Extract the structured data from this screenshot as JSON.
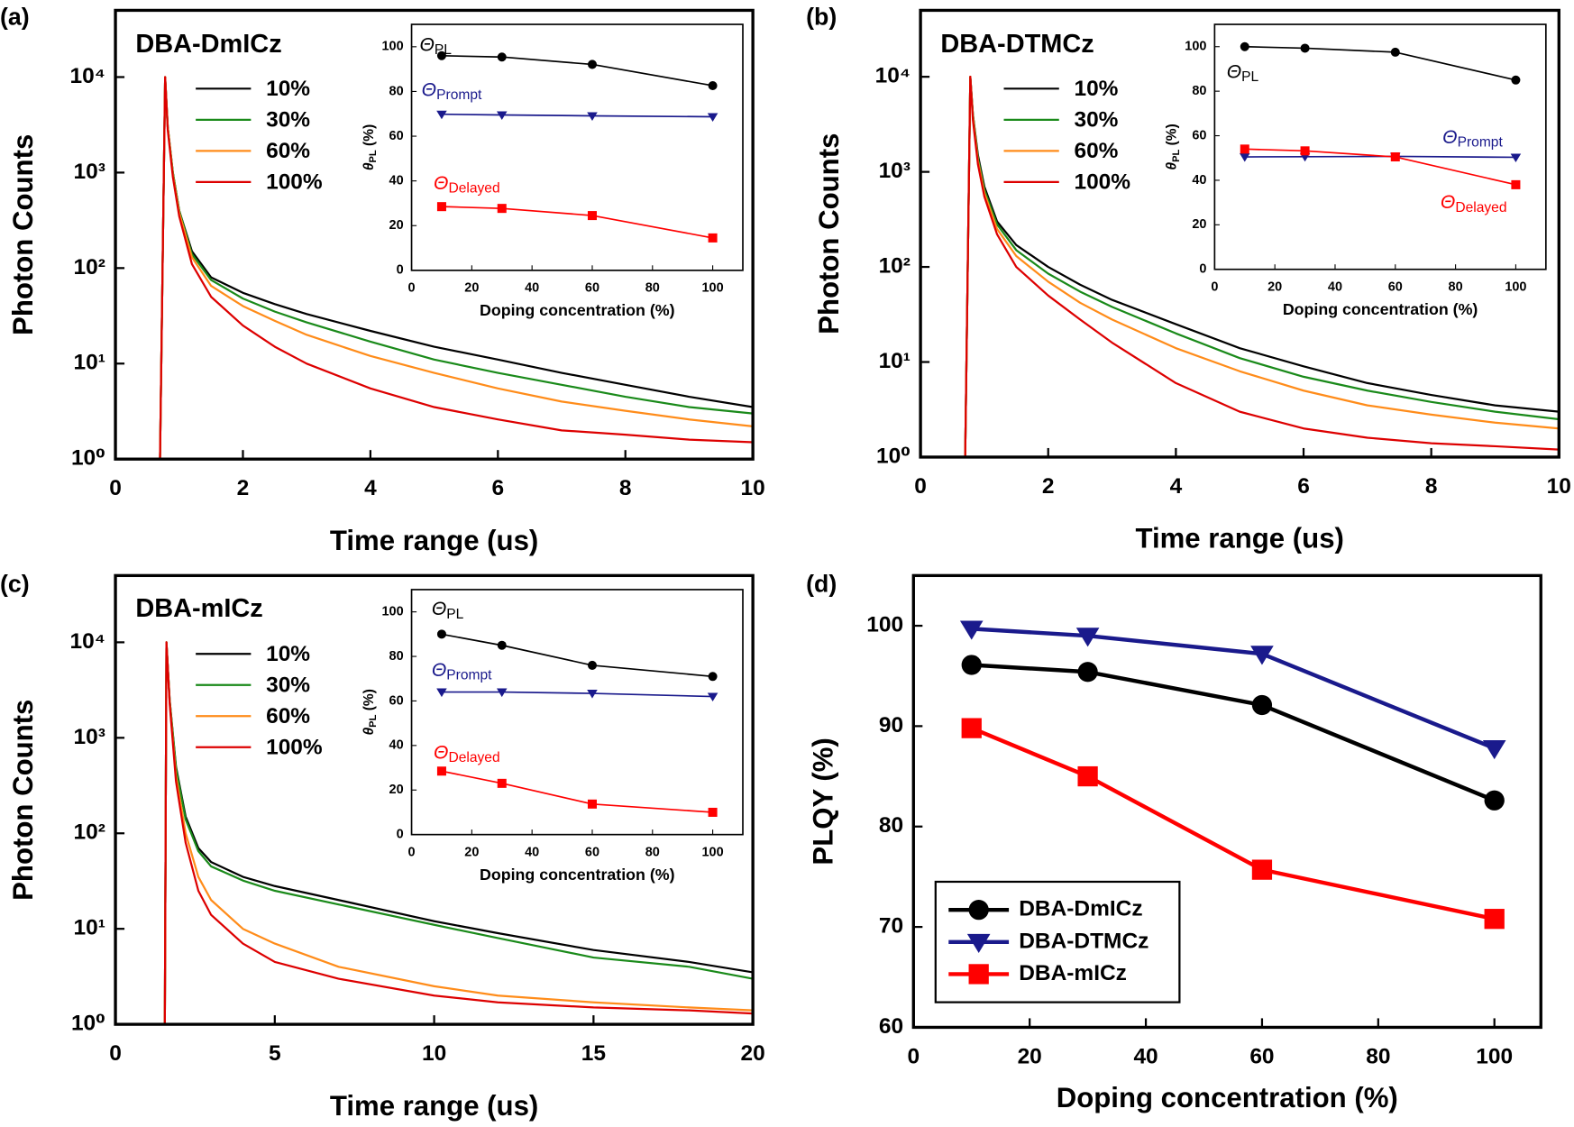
{
  "chart_data": [
    {
      "type": "line",
      "panel_label": "(a)",
      "title": "DBA-DmICz",
      "xlabel": "Time range (us)",
      "ylabel": "Photon Counts",
      "log_y": true,
      "x": [
        0,
        0.7,
        0.78,
        0.82,
        0.9,
        1.0,
        1.2,
        1.5,
        2,
        2.5,
        3,
        4,
        5,
        6,
        7,
        8,
        9,
        10
      ],
      "series": [
        {
          "name": "10%",
          "color": "#000000",
          "values": [
            1,
            1,
            10000,
            3000,
            1000,
            400,
            150,
            80,
            55,
            42,
            33,
            22,
            15,
            11,
            8,
            6,
            4.5,
            3.5
          ]
        },
        {
          "name": "30%",
          "color": "#1a8a1a",
          "values": [
            1,
            1,
            10000,
            3000,
            1000,
            400,
            140,
            75,
            48,
            35,
            27,
            17,
            11,
            8,
            6,
            4.5,
            3.5,
            3
          ]
        },
        {
          "name": "60%",
          "color": "#ff8c1a",
          "values": [
            1,
            1,
            10000,
            3000,
            950,
            380,
            130,
            65,
            40,
            28,
            20,
            12,
            8,
            5.5,
            4,
            3.2,
            2.6,
            2.2
          ]
        },
        {
          "name": "100%",
          "color": "#dd0000",
          "values": [
            1,
            1,
            10000,
            2800,
            900,
            350,
            110,
            50,
            25,
            15,
            10,
            5.5,
            3.5,
            2.6,
            2,
            1.8,
            1.6,
            1.5
          ]
        }
      ],
      "xlim": [
        0,
        10
      ],
      "ylim": [
        1,
        50000
      ],
      "xticks": [
        0,
        2,
        4,
        6,
        8,
        10
      ],
      "yticks": [
        {
          "value": 1,
          "label": "10⁰"
        },
        {
          "value": 10,
          "label": "10¹"
        },
        {
          "value": 100,
          "label": "10²"
        },
        {
          "value": 1000,
          "label": "10³"
        },
        {
          "value": 10000,
          "label": "10⁴"
        }
      ]
    },
    {
      "type": "line",
      "xlabel": "Doping concentration (%)",
      "ylabel": "θ",
      "ylabel_sub": "PL",
      "ylabel_suffix": " (%)",
      "x": [
        10,
        30,
        60,
        100
      ],
      "series": [
        {
          "name": "Θ",
          "name_sub": "PL",
          "color": "#000000",
          "marker": "circle",
          "values": [
            96,
            95.4,
            92.1,
            82.6
          ]
        },
        {
          "name": "Θ",
          "name_sub": "Prompt",
          "color": "#1a1a8c",
          "marker": "triangle",
          "values": [
            69.8,
            69.5,
            69.1,
            68.7
          ]
        },
        {
          "name": "Θ",
          "name_sub": "Delayed",
          "color": "#ff0000",
          "marker": "square",
          "values": [
            28.5,
            27.7,
            24.5,
            14.5
          ]
        }
      ],
      "xlim": [
        0,
        110
      ],
      "ylim": [
        0,
        110
      ],
      "xticks": [
        0,
        20,
        40,
        60,
        80,
        100
      ],
      "yticks": [
        0,
        20,
        40,
        60,
        80,
        100
      ]
    },
    {
      "type": "line",
      "panel_label": "(b)",
      "title": "DBA-DTMCz",
      "xlabel": "Time range (us)",
      "ylabel": "Photon Counts",
      "log_y": true,
      "x": [
        0,
        0.7,
        0.78,
        0.82,
        0.9,
        1.0,
        1.2,
        1.5,
        2,
        2.5,
        3,
        4,
        5,
        6,
        7,
        8,
        9,
        10
      ],
      "series": [
        {
          "name": "10%",
          "color": "#000000",
          "values": [
            1,
            1,
            10000,
            4000,
            1500,
            700,
            300,
            170,
            100,
            65,
            45,
            25,
            14,
            9,
            6,
            4.5,
            3.5,
            3
          ]
        },
        {
          "name": "30%",
          "color": "#1a8a1a",
          "values": [
            1,
            1,
            10000,
            4000,
            1400,
            650,
            280,
            150,
            85,
            55,
            38,
            20,
            11,
            7,
            5,
            3.8,
            3,
            2.5
          ]
        },
        {
          "name": "60%",
          "color": "#ff8c1a",
          "values": [
            1,
            1,
            10000,
            3800,
            1300,
            600,
            250,
            130,
            70,
            42,
            28,
            14,
            8,
            5,
            3.5,
            2.8,
            2.3,
            2
          ]
        },
        {
          "name": "100%",
          "color": "#dd0000",
          "values": [
            1,
            1,
            10000,
            3500,
            1200,
            550,
            220,
            100,
            50,
            28,
            16,
            6,
            3,
            2,
            1.6,
            1.4,
            1.3,
            1.2
          ]
        }
      ],
      "xlim": [
        0,
        10
      ],
      "ylim": [
        1,
        50000
      ],
      "xticks": [
        0,
        2,
        4,
        6,
        8,
        10
      ],
      "yticks": [
        {
          "value": 1,
          "label": "10⁰"
        },
        {
          "value": 10,
          "label": "10¹"
        },
        {
          "value": 100,
          "label": "10²"
        },
        {
          "value": 1000,
          "label": "10³"
        },
        {
          "value": 10000,
          "label": "10⁴"
        }
      ]
    },
    {
      "type": "line",
      "xlabel": "Doping concentration (%)",
      "ylabel": "θ",
      "ylabel_sub": "PL",
      "ylabel_suffix": " (%)",
      "x": [
        10,
        30,
        60,
        100
      ],
      "series": [
        {
          "name": "Θ",
          "name_sub": "PL",
          "color": "#000000",
          "marker": "circle",
          "values": [
            100,
            99.3,
            97.5,
            85
          ]
        },
        {
          "name": "Θ",
          "name_sub": "Prompt",
          "color": "#1a1a8c",
          "marker": "triangle",
          "values": [
            50.5,
            50.6,
            50.7,
            50.3
          ]
        },
        {
          "name": "Θ",
          "name_sub": "Delayed",
          "color": "#ff0000",
          "marker": "square",
          "values": [
            54,
            53.2,
            50.5,
            38
          ]
        }
      ],
      "xlim": [
        0,
        110
      ],
      "ylim": [
        0,
        110
      ],
      "xticks": [
        0,
        20,
        40,
        60,
        80,
        100
      ],
      "yticks": [
        0,
        20,
        40,
        60,
        80,
        100
      ]
    },
    {
      "type": "line",
      "panel_label": "(c)",
      "title": "DBA-mICz",
      "xlabel": "Time range (us)",
      "ylabel": "Photon Counts",
      "log_y": true,
      "x": [
        0,
        1.55,
        1.6,
        1.7,
        1.9,
        2.2,
        2.6,
        3,
        4,
        5,
        7,
        10,
        12,
        15,
        18,
        20
      ],
      "series": [
        {
          "name": "10%",
          "color": "#000000",
          "values": [
            1,
            1,
            10000,
            2500,
            500,
            150,
            70,
            50,
            35,
            28,
            20,
            12,
            9,
            6,
            4.5,
            3.5
          ]
        },
        {
          "name": "30%",
          "color": "#1a8a1a",
          "values": [
            1,
            1,
            10000,
            2500,
            480,
            140,
            65,
            45,
            32,
            25,
            18,
            11,
            8,
            5,
            4,
            3
          ]
        },
        {
          "name": "60%",
          "color": "#ff8c1a",
          "values": [
            1,
            1,
            10000,
            2400,
            400,
            100,
            35,
            20,
            10,
            7,
            4,
            2.5,
            2,
            1.7,
            1.5,
            1.4
          ]
        },
        {
          "name": "100%",
          "color": "#dd0000",
          "values": [
            1,
            1,
            10000,
            2300,
            350,
            80,
            25,
            14,
            7,
            4.5,
            3,
            2,
            1.7,
            1.5,
            1.4,
            1.3
          ]
        }
      ],
      "xlim": [
        0,
        20
      ],
      "ylim": [
        1,
        50000
      ],
      "xticks": [
        0,
        5,
        10,
        15,
        20
      ],
      "yticks": [
        {
          "value": 1,
          "label": "10⁰"
        },
        {
          "value": 10,
          "label": "10¹"
        },
        {
          "value": 100,
          "label": "10²"
        },
        {
          "value": 1000,
          "label": "10³"
        },
        {
          "value": 10000,
          "label": "10⁴"
        }
      ]
    },
    {
      "type": "line",
      "xlabel": "Doping concentration (%)",
      "ylabel": "θ",
      "ylabel_sub": "PL",
      "ylabel_suffix": " (%)",
      "x": [
        10,
        30,
        60,
        100
      ],
      "series": [
        {
          "name": "Θ",
          "name_sub": "PL",
          "color": "#000000",
          "marker": "circle",
          "values": [
            90,
            85,
            76,
            71
          ]
        },
        {
          "name": "Θ",
          "name_sub": "Prompt",
          "color": "#1a1a8c",
          "marker": "triangle",
          "values": [
            64,
            64,
            63.4,
            62
          ]
        },
        {
          "name": "Θ",
          "name_sub": "Delayed",
          "color": "#ff0000",
          "marker": "square",
          "values": [
            28.5,
            23,
            13.7,
            10
          ]
        }
      ],
      "xlim": [
        0,
        110
      ],
      "ylim": [
        0,
        110
      ],
      "xticks": [
        0,
        20,
        40,
        60,
        80,
        100
      ],
      "yticks": [
        0,
        20,
        40,
        60,
        80,
        100
      ]
    },
    {
      "type": "line",
      "panel_label": "(d)",
      "xlabel": "Doping concentration (%)",
      "ylabel": "PLQY (%)",
      "x": [
        10,
        30,
        60,
        100
      ],
      "series": [
        {
          "name": "DBA-DmICz",
          "color": "#000000",
          "marker": "circle",
          "values": [
            96.1,
            95.4,
            92.1,
            82.6
          ]
        },
        {
          "name": "DBA-DTMCz",
          "color": "#1a1a8c",
          "marker": "triangle",
          "values": [
            99.7,
            99,
            97.2,
            87.8
          ]
        },
        {
          "name": "DBA-mICz",
          "color": "#ff0000",
          "marker": "square",
          "values": [
            89.8,
            85,
            75.7,
            70.8
          ]
        }
      ],
      "xlim": [
        0,
        108
      ],
      "ylim": [
        60,
        105
      ],
      "xticks": [
        0,
        20,
        40,
        60,
        80,
        100
      ],
      "yticks": [
        60,
        70,
        80,
        90,
        100
      ]
    }
  ]
}
